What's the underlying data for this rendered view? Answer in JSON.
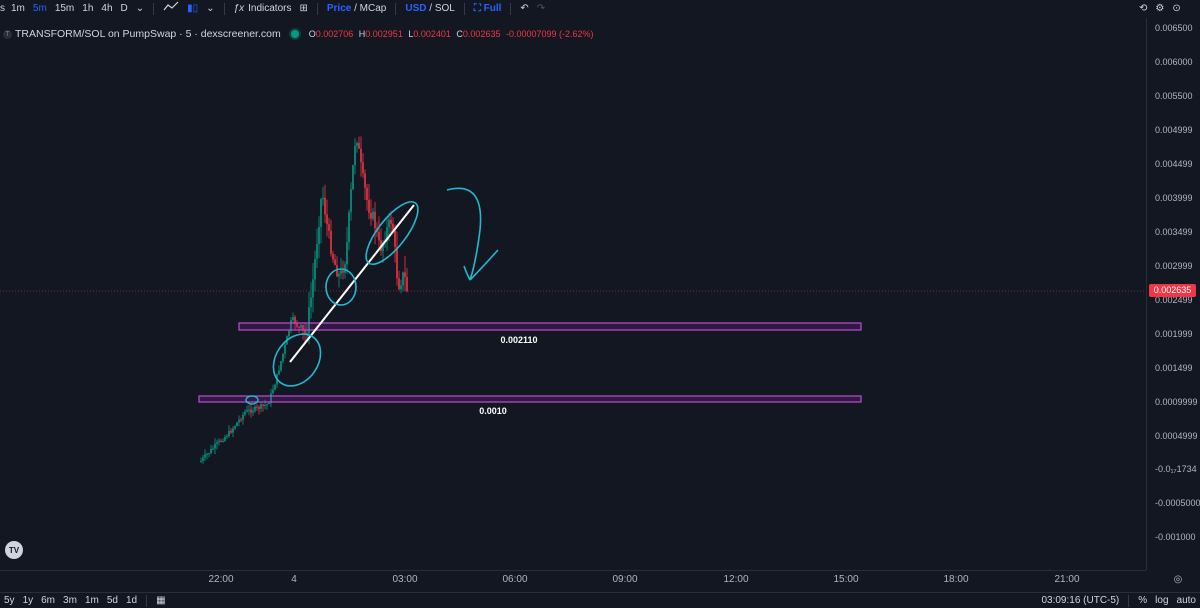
{
  "toolbar": {
    "intervals": [
      "1m",
      "5m",
      "15m",
      "1h",
      "4h",
      "D"
    ],
    "active_interval": "5m",
    "indicators_label": "Indicators",
    "price_label": "Price",
    "mcap_label": "MCap",
    "usd_label": "USD",
    "sol_label": "SOL",
    "full_label": "Full",
    "slash": "/"
  },
  "legend": {
    "symbol": "TRANSFORM/SOL on PumpSwap · 5 · dexscreener.com",
    "o_key": "O",
    "o_val": "0.002706",
    "h_key": "H",
    "h_val": "0.002951",
    "l_key": "L",
    "l_val": "0.002401",
    "c_key": "C",
    "c_val": "0.002635",
    "change": "-0.00007099 (-2.62%)"
  },
  "price_axis": {
    "labels": [
      "0.006500",
      "0.006000",
      "0.005500",
      "0.004999",
      "0.004499",
      "0.003999",
      "0.003499",
      "0.002999",
      "0.002499",
      "0.001999",
      "0.001499",
      "0.0009999",
      "0.0004999",
      "-0.0₁₇1734",
      "-0.0005000",
      "-0.001000"
    ],
    "current_price": "0.002635"
  },
  "time_axis": {
    "labels": [
      "22:00",
      "4",
      "03:00",
      "06:00",
      "09:00",
      "12:00",
      "15:00",
      "18:00",
      "21:00"
    ]
  },
  "zones": [
    {
      "label": "0.002110"
    },
    {
      "label": "0.0010"
    }
  ],
  "bottom": {
    "ranges": [
      "5y",
      "1y",
      "6m",
      "3m",
      "1m",
      "5d",
      "1d"
    ],
    "clock": "03:09:16 (UTC-5)",
    "percent": "%",
    "log": "log",
    "auto": "auto"
  },
  "colors": {
    "up": "#089981",
    "down": "#f23645",
    "zone": "#9c27b0",
    "annotation": "#22b8cf",
    "background": "#131722"
  }
}
